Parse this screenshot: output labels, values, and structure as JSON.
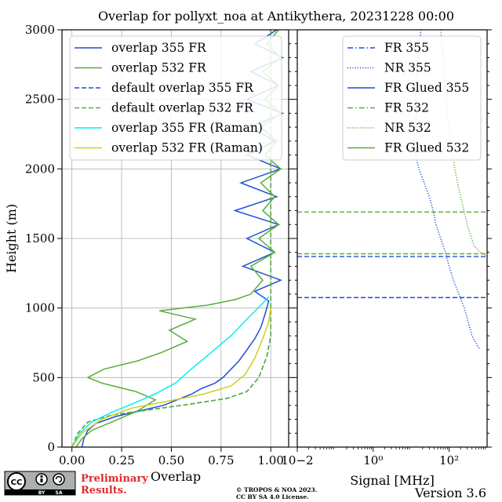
{
  "chart_data": [
    {
      "type": "line",
      "title": "Overlap for pollyxt_noa at Antikythera, 20231228 00:00",
      "xlabel": "Overlap",
      "ylabel": "Height (m)",
      "xlim": [
        -0.05,
        1.09
      ],
      "ylim": [
        0,
        3000
      ],
      "x_ticks": [
        "0.00",
        "0.25",
        "0.50",
        "0.75",
        "1.00"
      ],
      "y_ticks": [
        "0",
        "500",
        "1000",
        "1500",
        "2000",
        "2500",
        "3000"
      ],
      "grid": true,
      "legend": "top",
      "series": [
        {
          "name": "overlap 355 FR",
          "color": "#1f4fd6",
          "style": "solid",
          "points": [
            [
              0.05,
              0
            ],
            [
              0.06,
              60
            ],
            [
              0.08,
              120
            ],
            [
              0.12,
              170
            ],
            [
              0.22,
              220
            ],
            [
              0.34,
              260
            ],
            [
              0.46,
              300
            ],
            [
              0.53,
              340
            ],
            [
              0.6,
              380
            ],
            [
              0.65,
              420
            ],
            [
              0.72,
              460
            ],
            [
              0.76,
              500
            ],
            [
              0.8,
              560
            ],
            [
              0.84,
              620
            ],
            [
              0.88,
              700
            ],
            [
              0.92,
              780
            ],
            [
              0.95,
              860
            ],
            [
              0.97,
              950
            ],
            [
              0.99,
              1050
            ],
            [
              0.92,
              1120
            ],
            [
              1.05,
              1200
            ],
            [
              0.86,
              1300
            ],
            [
              1.02,
              1400
            ],
            [
              0.88,
              1500
            ],
            [
              1.04,
              1600
            ],
            [
              0.82,
              1700
            ],
            [
              1.03,
              1800
            ],
            [
              0.85,
              1900
            ],
            [
              1.05,
              2000
            ],
            [
              0.88,
              2100
            ],
            [
              1.02,
              2200
            ],
            [
              0.9,
              2300
            ],
            [
              1.06,
              2400
            ],
            [
              0.88,
              2500
            ],
            [
              1.04,
              2600
            ],
            [
              0.9,
              2700
            ],
            [
              1.06,
              2800
            ],
            [
              0.92,
              2900
            ],
            [
              1.03,
              3000
            ]
          ]
        },
        {
          "name": "overlap 532 FR",
          "color": "#5aad3a",
          "style": "solid",
          "points": [
            [
              0.02,
              0
            ],
            [
              0.05,
              60
            ],
            [
              0.1,
              120
            ],
            [
              0.2,
              180
            ],
            [
              0.33,
              260
            ],
            [
              0.42,
              340
            ],
            [
              0.32,
              400
            ],
            [
              0.15,
              460
            ],
            [
              0.08,
              500
            ],
            [
              0.16,
              560
            ],
            [
              0.33,
              620
            ],
            [
              0.45,
              680
            ],
            [
              0.58,
              760
            ],
            [
              0.49,
              840
            ],
            [
              0.62,
              920
            ],
            [
              0.44,
              980
            ],
            [
              0.68,
              1020
            ],
            [
              0.82,
              1060
            ],
            [
              0.9,
              1100
            ],
            [
              0.96,
              1200
            ],
            [
              0.9,
              1300
            ],
            [
              1.02,
              1400
            ],
            [
              0.94,
              1500
            ],
            [
              1.04,
              1600
            ],
            [
              0.96,
              1700
            ],
            [
              1.02,
              1800
            ],
            [
              0.95,
              1900
            ],
            [
              1.05,
              2000
            ],
            [
              0.97,
              2100
            ],
            [
              1.03,
              2200
            ],
            [
              0.95,
              2300
            ],
            [
              1.05,
              2400
            ],
            [
              0.97,
              2500
            ],
            [
              1.04,
              2600
            ],
            [
              0.96,
              2700
            ],
            [
              1.05,
              2800
            ],
            [
              0.98,
              2900
            ],
            [
              1.04,
              3000
            ]
          ]
        },
        {
          "name": "default overlap 355 FR",
          "color": "#1f4fd6",
          "style": "dashed",
          "points": [
            [
              0.0,
              0
            ],
            [
              0.03,
              100
            ],
            [
              0.08,
              180
            ],
            [
              0.2,
              230
            ],
            [
              0.4,
              270
            ],
            [
              0.6,
              310
            ],
            [
              0.78,
              350
            ],
            [
              0.88,
              400
            ],
            [
              0.94,
              500
            ],
            [
              0.98,
              650
            ],
            [
              1.0,
              800
            ],
            [
              1.0,
              3000
            ]
          ]
        },
        {
          "name": "default overlap 532 FR",
          "color": "#5aad3a",
          "style": "dashed",
          "points": [
            [
              0.0,
              0
            ],
            [
              0.03,
              100
            ],
            [
              0.08,
              180
            ],
            [
              0.2,
              230
            ],
            [
              0.4,
              270
            ],
            [
              0.6,
              310
            ],
            [
              0.78,
              350
            ],
            [
              0.88,
              400
            ],
            [
              0.94,
              500
            ],
            [
              0.98,
              650
            ],
            [
              1.0,
              800
            ],
            [
              1.0,
              3000
            ]
          ]
        },
        {
          "name": "overlap 355 FR (Raman)",
          "color": "#00f0f0",
          "style": "solid",
          "points": [
            [
              0.0,
              0
            ],
            [
              0.04,
              100
            ],
            [
              0.1,
              180
            ],
            [
              0.2,
              250
            ],
            [
              0.32,
              320
            ],
            [
              0.43,
              390
            ],
            [
              0.52,
              460
            ],
            [
              0.6,
              560
            ],
            [
              0.7,
              680
            ],
            [
              0.8,
              800
            ],
            [
              0.88,
              920
            ],
            [
              0.95,
              1020
            ],
            [
              0.99,
              1080
            ]
          ]
        },
        {
          "name": "overlap 532 FR (Raman)",
          "color": "#cfcf1f",
          "style": "solid",
          "points": [
            [
              0.0,
              0
            ],
            [
              0.05,
              100
            ],
            [
              0.15,
              200
            ],
            [
              0.3,
              280
            ],
            [
              0.48,
              330
            ],
            [
              0.66,
              380
            ],
            [
              0.8,
              440
            ],
            [
              0.87,
              520
            ],
            [
              0.92,
              640
            ],
            [
              0.96,
              780
            ],
            [
              0.99,
              900
            ],
            [
              1.0,
              1000
            ]
          ]
        }
      ]
    },
    {
      "type": "line",
      "xlabel": "Signal [MHz]",
      "x_scale": "log",
      "xlim": [
        0.01,
        1000
      ],
      "ylim": [
        0,
        3000
      ],
      "x_ticks": [
        "10−2",
        "10⁰",
        "10²"
      ],
      "x_tick_values": [
        0.01,
        1,
        100
      ],
      "legend": "top-right",
      "hlines": [
        {
          "y": 1690,
          "color": "#5aad3a",
          "style": "dashed"
        },
        {
          "y": 1390,
          "color": "#5aad3a",
          "style": "dashed"
        },
        {
          "y": 1370,
          "color": "#1f4fd6",
          "style": "dashed"
        },
        {
          "y": 1075,
          "color": "#1f4fd6",
          "style": "dashed"
        }
      ],
      "series": [
        {
          "name": "FR 355",
          "color": "#1f4fd6",
          "style": "dashdot",
          "points": []
        },
        {
          "name": "NR 355",
          "color": "#1f4fd6",
          "style": "dotted",
          "points": [
            [
              18,
              3000
            ],
            [
              16,
              2850
            ],
            [
              14,
              2700
            ],
            [
              13,
              2550
            ],
            [
              14,
              2400
            ],
            [
              12,
              2250
            ],
            [
              13,
              2100
            ],
            [
              16,
              2000
            ],
            [
              22,
              1900
            ],
            [
              30,
              1800
            ],
            [
              38,
              1700
            ],
            [
              45,
              1600
            ],
            [
              60,
              1500
            ],
            [
              80,
              1400
            ],
            [
              100,
              1300
            ],
            [
              130,
              1200
            ],
            [
              180,
              1100
            ],
            [
              250,
              1000
            ],
            [
              320,
              900
            ],
            [
              400,
              800
            ],
            [
              500,
              750
            ],
            [
              650,
              700
            ]
          ]
        },
        {
          "name": "FR Glued 355",
          "color": "#1f4fd6",
          "style": "solid",
          "points": []
        },
        {
          "name": "FR 532",
          "color": "#5aad3a",
          "style": "dashdot",
          "points": []
        },
        {
          "name": "NR 532",
          "color": "#5aad3a",
          "style": "dotted",
          "points": [
            [
              60,
              3000
            ],
            [
              70,
              2800
            ],
            [
              80,
              2600
            ],
            [
              90,
              2400
            ],
            [
              110,
              2200
            ],
            [
              140,
              2000
            ],
            [
              200,
              1800
            ],
            [
              300,
              1600
            ],
            [
              450,
              1450
            ],
            [
              650,
              1400
            ],
            [
              900,
              1380
            ]
          ]
        },
        {
          "name": "FR Glued 532",
          "color": "#5aad3a",
          "style": "solid",
          "points": []
        }
      ]
    }
  ],
  "footer": {
    "cc_badge": "CC",
    "cc_by": "BY",
    "cc_sa": "SA",
    "preliminary_line1": "Preliminary",
    "preliminary_line2": "Results.",
    "copyright_line1": "© TROPOS & NOA 2023.",
    "copyright_line2": "CC BY SA 4.0 License.",
    "version": "Version 3.6"
  }
}
